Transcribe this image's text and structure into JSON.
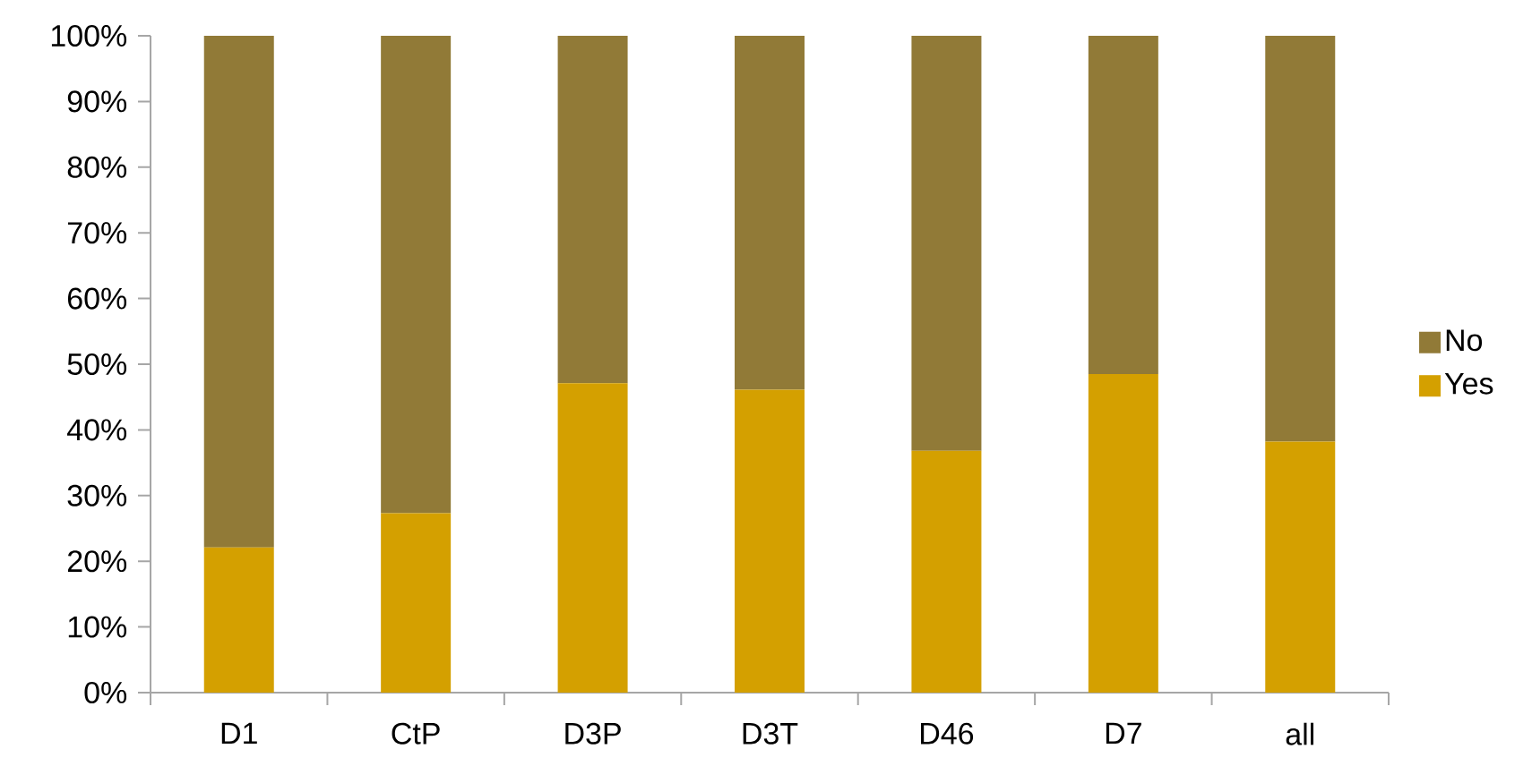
{
  "chart_data": {
    "type": "bar",
    "stacked": true,
    "categories": [
      "D1",
      "CtP",
      "D3P",
      "D3T",
      "D46",
      "D7",
      "all"
    ],
    "series": [
      {
        "name": "Yes",
        "color": "#d4a000",
        "values": [
          22.1,
          27.3,
          47.1,
          46.1,
          36.8,
          48.5,
          38.2
        ]
      },
      {
        "name": "No",
        "color": "#917a37",
        "values": [
          77.9,
          72.7,
          52.9,
          53.9,
          63.2,
          51.5,
          61.8
        ]
      }
    ],
    "ylim": [
      0,
      100
    ],
    "yticks": [
      {
        "value": 0,
        "label": "0%"
      },
      {
        "value": 10,
        "label": "10%"
      },
      {
        "value": 20,
        "label": "20%"
      },
      {
        "value": 30,
        "label": "30%"
      },
      {
        "value": 40,
        "label": "40%"
      },
      {
        "value": 50,
        "label": "50%"
      },
      {
        "value": 60,
        "label": "60%"
      },
      {
        "value": 70,
        "label": "70%"
      },
      {
        "value": 80,
        "label": "80%"
      },
      {
        "value": 90,
        "label": "90%"
      },
      {
        "value": 100,
        "label": "100%"
      }
    ],
    "grid": false,
    "legend": "right"
  }
}
